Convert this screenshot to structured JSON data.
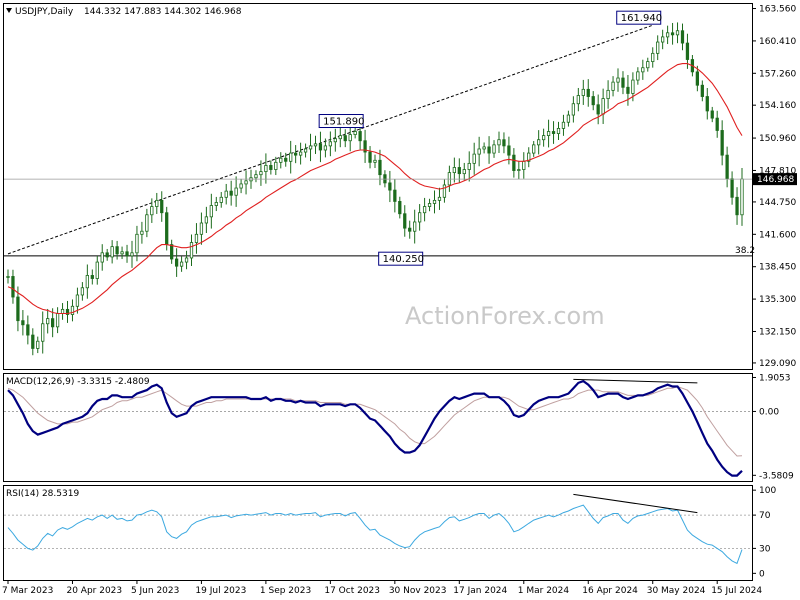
{
  "header": {
    "symbol": "USDJPY,Daily",
    "ohlc": "144.332 147.883 144.302 146.968"
  },
  "watermark": "ActionForex.com",
  "colors": {
    "background": "#ffffff",
    "candle": "#1c6b1c",
    "ma": "#e02020",
    "trendline": "#000000",
    "macd": "#000080",
    "signal": "#c0a0a0",
    "rsi": "#3da9e0",
    "price_marker_bg": "#000000",
    "level_box_border": "#000080"
  },
  "price_panel": {
    "y_ticks": [
      "163.560",
      "160.410",
      "157.260",
      "154.160",
      "150.960",
      "147.810",
      "144.750",
      "141.600",
      "138.450",
      "135.300",
      "132.150",
      "129.090"
    ],
    "y_tick_values": [
      163.56,
      160.41,
      157.26,
      154.16,
      150.96,
      147.81,
      144.75,
      141.6,
      138.45,
      135.3,
      132.15,
      129.09
    ],
    "last_price_label": "146.968",
    "last_price": 146.968,
    "fib_label": "38.2",
    "fib_level": 139.5,
    "annotations": [
      {
        "text": "151.890",
        "index": 70,
        "price": 151.89
      },
      {
        "text": "140.250",
        "index": 82,
        "price": 140.25
      },
      {
        "text": "161.940",
        "index": 130,
        "price": 161.94
      }
    ]
  },
  "macd_panel": {
    "label": "MACD(12,26,9) -3.3315 -2.4809",
    "y_ticks": [
      "1.9053",
      "0.00",
      "-3.5809"
    ],
    "y_tick_values": [
      1.9053,
      0.0,
      -3.5809
    ]
  },
  "rsi_panel": {
    "label": "RSI(14) 28.5319",
    "y_ticks": [
      "100",
      "70",
      "30",
      "0"
    ],
    "y_tick_values": [
      100,
      70,
      30,
      0
    ]
  },
  "x_axis": {
    "labels": [
      "7 Mar 2023",
      "20 Apr 2023",
      "5 Jun 2023",
      "19 Jul 2023",
      "1 Sep 2023",
      "17 Oct 2023",
      "30 Nov 2023",
      "17 Jan 2024",
      "1 Mar 2024",
      "16 Apr 2024",
      "30 May 2024",
      "15 Jul 2024"
    ],
    "label_indices": [
      0,
      13,
      26,
      39,
      52,
      65,
      78,
      91,
      104,
      117,
      130,
      143
    ]
  },
  "chart_data": {
    "type": "line",
    "title": "USDJPY,Daily",
    "series": [
      {
        "name": "USDJPY",
        "values": [
          137.5,
          135.5,
          133.2,
          132.8,
          131.8,
          130.5,
          131.2,
          132.9,
          133.4,
          132.6,
          133.9,
          134.3,
          133.8,
          134.6,
          135.7,
          136.4,
          137.6,
          137.3,
          138.9,
          139.8,
          139.4,
          140.4,
          139.7,
          139.9,
          139.5,
          139.8,
          141.6,
          141.9,
          143.5,
          144.3,
          144.9,
          143.7,
          140.6,
          139.2,
          138.5,
          138.9,
          139.3,
          140.8,
          141.6,
          142.7,
          143.3,
          144.4,
          144.7,
          145.2,
          145.8,
          145.4,
          146.1,
          146.5,
          146.8,
          147.1,
          147.4,
          147.7,
          148.3,
          147.9,
          148.6,
          149.0,
          148.7,
          149.5,
          149.3,
          149.6,
          149.9,
          150.2,
          150.4,
          149.8,
          150.2,
          150.6,
          150.9,
          151.2,
          150.7,
          151.3,
          151.6,
          150.7,
          149.6,
          148.6,
          148.8,
          147.4,
          146.6,
          145.9,
          144.8,
          143.6,
          142.2,
          141.9,
          142.8,
          143.7,
          144.3,
          144.6,
          144.9,
          145.2,
          146.4,
          147.6,
          148.1,
          147.5,
          147.9,
          148.5,
          149.4,
          149.9,
          150.1,
          149.5,
          150.3,
          150.8,
          150.2,
          149.3,
          147.8,
          147.9,
          148.7,
          149.5,
          150.3,
          150.8,
          151.2,
          151.6,
          151.4,
          151.9,
          152.5,
          153.2,
          154.3,
          155.1,
          155.7,
          155.0,
          154.2,
          153.3,
          154.8,
          155.6,
          156.4,
          156.8,
          155.9,
          155.3,
          156.6,
          157.4,
          157.8,
          158.4,
          159.2,
          160.3,
          160.8,
          161.2,
          161.0,
          161.4,
          160.2,
          158.6,
          157.4,
          156.1,
          155.0,
          153.6,
          152.9,
          151.7,
          149.3,
          147.0,
          145.2,
          143.5,
          146.97
        ]
      },
      {
        "name": "MACD(12,26,9)",
        "values": [
          1.2,
          0.9,
          0.4,
          -0.1,
          -0.7,
          -1.1,
          -1.3,
          -1.2,
          -1.1,
          -1.0,
          -0.9,
          -0.7,
          -0.6,
          -0.5,
          -0.4,
          -0.3,
          -0.1,
          0.3,
          0.6,
          0.7,
          0.7,
          0.9,
          0.9,
          0.8,
          0.8,
          0.8,
          1.0,
          1.1,
          1.2,
          1.4,
          1.5,
          1.3,
          0.5,
          -0.1,
          -0.3,
          -0.2,
          -0.1,
          0.3,
          0.5,
          0.6,
          0.7,
          0.8,
          0.8,
          0.8,
          0.8,
          0.8,
          0.8,
          0.8,
          0.8,
          0.7,
          0.7,
          0.7,
          0.8,
          0.6,
          0.7,
          0.7,
          0.6,
          0.6,
          0.5,
          0.6,
          0.5,
          0.5,
          0.5,
          0.3,
          0.4,
          0.4,
          0.4,
          0.4,
          0.3,
          0.4,
          0.4,
          0.2,
          -0.1,
          -0.4,
          -0.5,
          -0.8,
          -1.1,
          -1.4,
          -1.8,
          -2.1,
          -2.3,
          -2.3,
          -2.2,
          -1.9,
          -1.4,
          -0.9,
          -0.4,
          0.0,
          0.3,
          0.6,
          0.8,
          0.7,
          0.8,
          0.9,
          1.0,
          1.0,
          1.0,
          0.8,
          0.8,
          0.8,
          0.6,
          0.3,
          -0.2,
          -0.3,
          -0.2,
          0.1,
          0.4,
          0.6,
          0.7,
          0.8,
          0.8,
          0.8,
          0.9,
          1.0,
          1.3,
          1.6,
          1.7,
          1.5,
          1.2,
          0.8,
          0.9,
          1.0,
          1.0,
          1.0,
          0.8,
          0.7,
          0.8,
          0.9,
          0.9,
          1.0,
          1.1,
          1.3,
          1.4,
          1.5,
          1.4,
          1.4,
          1.0,
          0.5,
          0.0,
          -0.6,
          -1.2,
          -1.8,
          -2.2,
          -2.7,
          -3.1,
          -3.4,
          -3.6,
          -3.6,
          -3.33
        ]
      },
      {
        "name": "RSI(14)",
        "values": [
          55,
          48,
          40,
          35,
          30,
          28,
          33,
          42,
          48,
          45,
          52,
          55,
          53,
          56,
          60,
          63,
          66,
          64,
          68,
          70,
          66,
          70,
          65,
          66,
          63,
          64,
          70,
          71,
          74,
          76,
          74,
          68,
          50,
          44,
          42,
          47,
          50,
          58,
          62,
          64,
          66,
          68,
          68,
          69,
          70,
          67,
          69,
          70,
          71,
          70,
          71,
          72,
          73,
          70,
          72,
          72,
          70,
          72,
          70,
          71,
          72,
          72,
          73,
          68,
          70,
          71,
          72,
          72,
          69,
          72,
          73,
          66,
          58,
          52,
          53,
          46,
          43,
          40,
          36,
          33,
          31,
          32,
          40,
          46,
          50,
          52,
          54,
          56,
          62,
          67,
          68,
          63,
          65,
          67,
          70,
          72,
          72,
          66,
          70,
          72,
          67,
          60,
          50,
          52,
          56,
          60,
          64,
          66,
          68,
          70,
          68,
          70,
          73,
          75,
          78,
          80,
          82,
          74,
          66,
          60,
          67,
          69,
          72,
          72,
          64,
          60,
          66,
          69,
          70,
          72,
          74,
          76,
          77,
          78,
          75,
          76,
          64,
          52,
          46,
          42,
          38,
          35,
          34,
          30,
          26,
          20,
          15,
          12,
          28.5
        ]
      }
    ],
    "ma_values": [
      136.5,
      136.3,
      135.9,
      135.6,
      135.2,
      134.8,
      134.5,
      134.3,
      134.2,
      134.0,
      133.9,
      133.9,
      133.9,
      134.0,
      134.2,
      134.4,
      134.7,
      135.0,
      135.4,
      135.8,
      136.2,
      136.7,
      137.1,
      137.5,
      137.8,
      138.1,
      138.5,
      138.9,
      139.3,
      139.8,
      140.3,
      140.6,
      140.6,
      140.5,
      140.4,
      140.3,
      140.3,
      140.4,
      140.6,
      140.8,
      141.1,
      141.4,
      141.8,
      142.1,
      142.5,
      142.8,
      143.2,
      143.5,
      143.9,
      144.2,
      144.5,
      144.8,
      145.2,
      145.5,
      145.8,
      146.1,
      146.4,
      146.7,
      146.9,
      147.2,
      147.5,
      147.8,
      148.0,
      148.2,
      148.4,
      148.6,
      148.9,
      149.1,
      149.3,
      149.5,
      149.7,
      149.8,
      149.8,
      149.7,
      149.6,
      149.4,
      149.2,
      148.8,
      148.4,
      148.0,
      147.5,
      147.1,
      146.8,
      146.5,
      146.3,
      146.2,
      146.1,
      146.0,
      146.1,
      146.3,
      146.5,
      146.6,
      146.8,
      147.0,
      147.3,
      147.6,
      147.9,
      148.1,
      148.4,
      148.6,
      148.8,
      148.9,
      148.8,
      148.7,
      148.7,
      148.8,
      149.0,
      149.2,
      149.4,
      149.7,
      149.9,
      150.2,
      150.5,
      150.9,
      151.3,
      151.7,
      152.2,
      152.5,
      152.8,
      153.0,
      153.3,
      153.6,
      153.9,
      154.3,
      154.5,
      154.7,
      155.0,
      155.3,
      155.6,
      155.9,
      156.3,
      156.7,
      157.1,
      157.5,
      157.8,
      158.1,
      158.2,
      158.2,
      158.0,
      157.7,
      157.3,
      156.8,
      156.3,
      155.6,
      154.8,
      154.0,
      153.0,
      152.0,
      151.2
    ],
    "signal_values": [
      1.3,
      1.2,
      1.0,
      0.8,
      0.5,
      0.2,
      -0.1,
      -0.3,
      -0.5,
      -0.6,
      -0.7,
      -0.7,
      -0.7,
      -0.6,
      -0.6,
      -0.5,
      -0.4,
      -0.3,
      -0.1,
      0.1,
      0.2,
      0.3,
      0.5,
      0.6,
      0.6,
      0.7,
      0.8,
      0.8,
      0.9,
      1.0,
      1.1,
      1.2,
      1.0,
      0.8,
      0.6,
      0.4,
      0.3,
      0.3,
      0.3,
      0.4,
      0.5,
      0.5,
      0.6,
      0.6,
      0.7,
      0.7,
      0.7,
      0.7,
      0.7,
      0.7,
      0.7,
      0.7,
      0.7,
      0.7,
      0.7,
      0.7,
      0.7,
      0.7,
      0.6,
      0.6,
      0.6,
      0.6,
      0.6,
      0.5,
      0.5,
      0.5,
      0.5,
      0.5,
      0.4,
      0.4,
      0.4,
      0.4,
      0.3,
      0.2,
      0.1,
      -0.1,
      -0.3,
      -0.5,
      -0.7,
      -1.0,
      -1.2,
      -1.5,
      -1.7,
      -1.8,
      -1.8,
      -1.6,
      -1.4,
      -1.1,
      -0.8,
      -0.5,
      -0.2,
      0.0,
      0.2,
      0.4,
      0.6,
      0.7,
      0.8,
      0.8,
      0.8,
      0.8,
      0.8,
      0.7,
      0.5,
      0.3,
      0.2,
      0.1,
      0.1,
      0.2,
      0.3,
      0.4,
      0.5,
      0.6,
      0.7,
      0.7,
      0.8,
      1.0,
      1.1,
      1.2,
      1.2,
      1.2,
      1.1,
      1.1,
      1.1,
      1.1,
      1.0,
      0.9,
      0.9,
      0.9,
      0.9,
      0.9,
      1.0,
      1.1,
      1.2,
      1.3,
      1.3,
      1.4,
      1.3,
      1.2,
      0.9,
      0.6,
      0.2,
      -0.3,
      -0.7,
      -1.1,
      -1.5,
      -1.9,
      -2.2,
      -2.5,
      -2.48
    ],
    "trendline": {
      "from": {
        "index": 0,
        "price": 139.7
      },
      "to": {
        "index": 130,
        "price": 161.94
      }
    },
    "rsi_trendline": {
      "from": {
        "index": 114,
        "value": 95
      },
      "to": {
        "index": 139,
        "value": 73
      }
    },
    "macd_trendline": {
      "from": {
        "index": 114,
        "value": 1.8
      },
      "to": {
        "index": 139,
        "value": 1.6
      }
    },
    "ylim_price": [
      128.5,
      164.0
    ],
    "ylim_macd": [
      -3.9,
      2.1
    ],
    "ylim_rsi": [
      -8,
      105
    ]
  }
}
